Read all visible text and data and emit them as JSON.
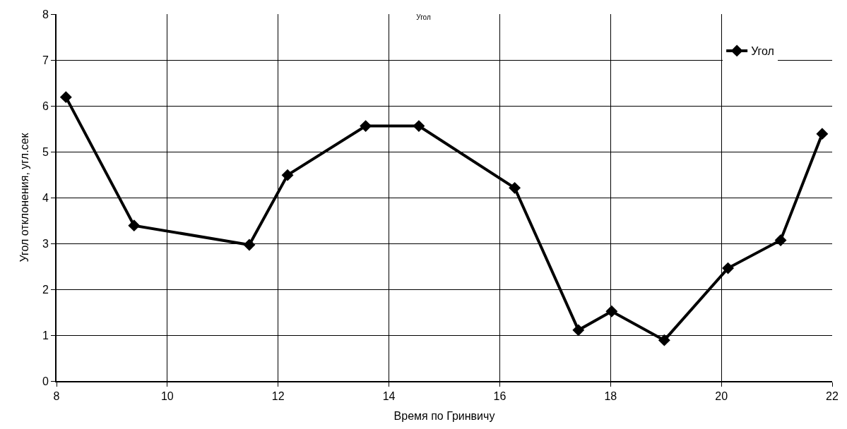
{
  "chart_data": {
    "type": "line",
    "title": "Угол",
    "xlabel": "Время по Гринвичу",
    "ylabel": "Угол отклонения, угл.сек",
    "x": [
      8.17,
      9.4,
      11.48,
      12.17,
      13.58,
      14.54,
      16.27,
      17.42,
      18.02,
      18.97,
      20.12,
      21.07,
      21.82
    ],
    "series": [
      {
        "name": "Угол",
        "color": "#000000",
        "values": [
          6.19,
          3.39,
          2.97,
          4.49,
          5.56,
          5.56,
          4.21,
          1.11,
          1.52,
          0.89,
          2.46,
          3.07,
          5.39
        ]
      }
    ],
    "xlim": [
      8,
      22
    ],
    "xticks": [
      8,
      10,
      12,
      14,
      16,
      18,
      20,
      22
    ],
    "ylim": [
      0,
      8
    ],
    "yticks": [
      0,
      1,
      2,
      3,
      4,
      5,
      6,
      7,
      8
    ],
    "grid": true,
    "legend": "top right",
    "marker": "diamond",
    "line_style": "solid"
  }
}
